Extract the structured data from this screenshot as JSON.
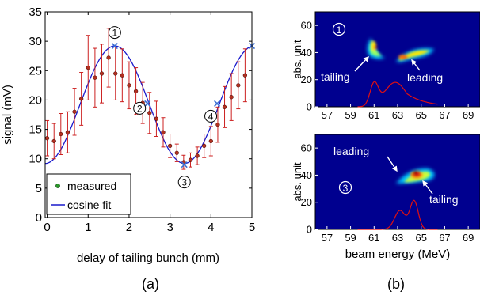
{
  "chart_data": [
    {
      "type": "scatter",
      "panel_label": "(a)",
      "xlabel": "delay of tailing bunch (mm)",
      "ylabel": "signal (mV)",
      "xlim": [
        -0.05,
        5.0
      ],
      "ylim": [
        0,
        35
      ],
      "xticks": [
        0,
        1,
        2,
        3,
        4,
        5
      ],
      "yticks": [
        0,
        5,
        10,
        15,
        20,
        25,
        30,
        35
      ],
      "grid": false,
      "legend_position": "bottom-left",
      "series": [
        {
          "name": "measured",
          "x": [
            0.0,
            0.167,
            0.333,
            0.5,
            0.667,
            0.833,
            1.0,
            1.167,
            1.333,
            1.5,
            1.667,
            1.833,
            2.0,
            2.167,
            2.333,
            2.5,
            2.667,
            2.833,
            3.0,
            3.167,
            3.333,
            3.5,
            3.667,
            3.833,
            4.0,
            4.167,
            4.333,
            4.5,
            4.667,
            4.833
          ],
          "y": [
            13.5,
            13,
            14.2,
            14.5,
            18,
            20.2,
            25.5,
            23.8,
            24.5,
            27.2,
            24.5,
            24.2,
            22.5,
            21.5,
            19.5,
            17.8,
            16.8,
            14.5,
            12.2,
            11,
            9.4,
            9.8,
            10.5,
            12.2,
            13,
            15.8,
            18.8,
            20.5,
            22.5,
            24.2
          ],
          "err": [
            3.0,
            3.0,
            3.5,
            3.5,
            4.0,
            4.5,
            5.5,
            5.0,
            5.0,
            5.0,
            4.5,
            4.5,
            4.0,
            4.0,
            3.5,
            3.5,
            3.0,
            2.5,
            2.0,
            1.5,
            1.2,
            1.2,
            1.5,
            2.0,
            2.5,
            3.0,
            3.5,
            4.0,
            4.0,
            4.5
          ]
        },
        {
          "name": "cosine fit",
          "type": "line",
          "mean": 19.2,
          "amplitude": 10.0,
          "period_mm": 3.4,
          "peak_x": 1.65
        }
      ],
      "markers": [
        {
          "label": "1",
          "x": 1.65,
          "y": 29.2
        },
        {
          "label": "2",
          "x": 2.45,
          "y": 19.4
        },
        {
          "label": "3",
          "x": 3.35,
          "y": 9.0
        },
        {
          "label": "4",
          "x": 4.15,
          "y": 19.4
        },
        {
          "x": 5.0,
          "y": 29.2
        }
      ],
      "colors": {
        "fit": "#1a1acc",
        "point": "#b33020",
        "errorbar": "#cc2020",
        "marker": "#3b6fd4"
      }
    },
    {
      "type": "heatmap",
      "panel_label": "(b)",
      "marker_label": "1",
      "ylabel": "abs. unit",
      "xlim": [
        56,
        70
      ],
      "ylim": [
        0,
        70
      ],
      "xticks": [
        57,
        59,
        61,
        63,
        65,
        67,
        69
      ],
      "yticks": [
        0,
        20,
        40,
        60
      ],
      "annotations": [
        "tailing",
        "leading"
      ],
      "spectrum_color": "#e01010",
      "background": "#00008f"
    },
    {
      "type": "heatmap",
      "marker_label": "3",
      "xlabel": "beam energy (MeV)",
      "ylabel": "abs. unit",
      "xlim": [
        56,
        70
      ],
      "ylim": [
        0,
        70
      ],
      "xticks": [
        57,
        59,
        61,
        63,
        65,
        67,
        69
      ],
      "yticks": [
        0,
        20,
        40,
        60
      ],
      "annotations": [
        "leading",
        "tailing"
      ],
      "spectrum_color": "#e01010",
      "background": "#00008f"
    }
  ]
}
